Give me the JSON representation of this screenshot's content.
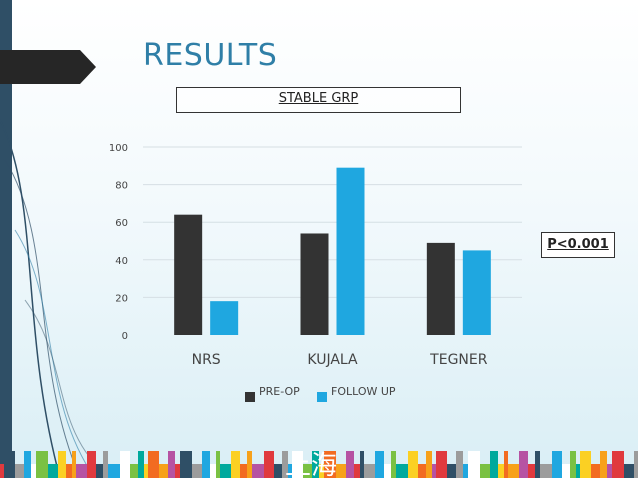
{
  "slide": {
    "title": "RESULTS",
    "subtitle": "STABLE GRP",
    "p_value": "P<0.001",
    "footer_text": "上海"
  },
  "colors": {
    "accent": "#2f7fa7",
    "pre_op": "#333333",
    "follow_up": "#1fa7e0"
  },
  "chart_data": {
    "type": "bar",
    "categories": [
      "NRS",
      "KUJALA",
      "TEGNER"
    ],
    "series": [
      {
        "name": "PRE-OP",
        "values": [
          64,
          54,
          49
        ],
        "color": "#333333"
      },
      {
        "name": "FOLLOW UP",
        "values": [
          18,
          89,
          45
        ],
        "color": "#1fa7e0"
      }
    ],
    "yticks": [
      "0",
      "20",
      "40",
      "60",
      "80",
      "100"
    ],
    "ylim": [
      0,
      100
    ],
    "grid": true,
    "legend_position": "bottom"
  }
}
